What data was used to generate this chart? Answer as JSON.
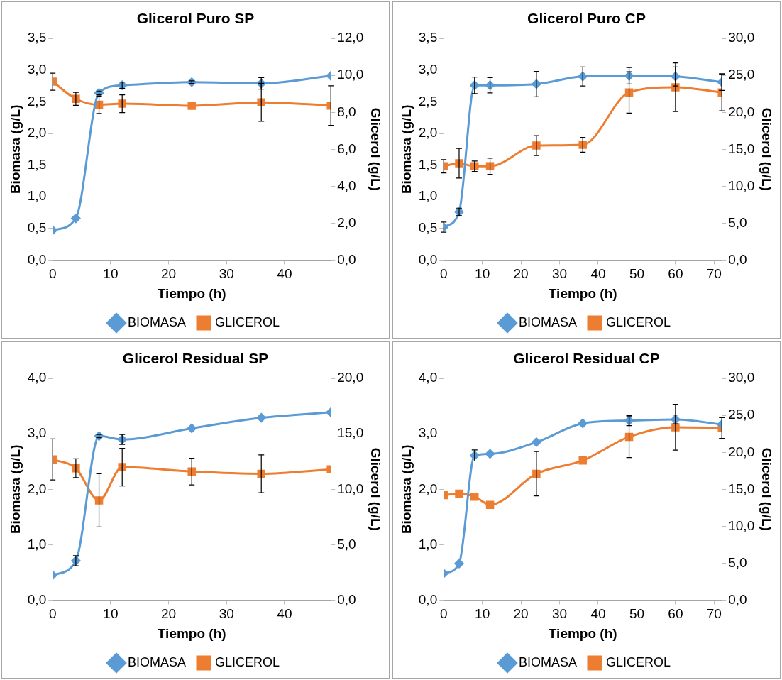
{
  "chart_data": [
    {
      "type": "line",
      "title": "Glicerol Puro SP",
      "xlabel": "Tiempo (h)",
      "ylabel": "Biomasa (g/L)",
      "y2label": "Glicerol (g/L)",
      "x": [
        0,
        4,
        8,
        12,
        24,
        36,
        48
      ],
      "xlim": [
        0,
        48
      ],
      "xticks": [
        0,
        10,
        20,
        30,
        40
      ],
      "ylim": [
        0,
        3.5
      ],
      "yticks": [
        {
          "value": 0,
          "label": "0,0"
        },
        {
          "value": 0.5,
          "label": "0,5"
        },
        {
          "value": 1,
          "label": "1,0"
        },
        {
          "value": 1.5,
          "label": "1,5"
        },
        {
          "value": 2,
          "label": "2,0"
        },
        {
          "value": 2.5,
          "label": "2,5"
        },
        {
          "value": 3,
          "label": "3,0"
        },
        {
          "value": 3.5,
          "label": "3,5"
        }
      ],
      "y2lim": [
        0,
        12
      ],
      "y2ticks": [
        {
          "value": 0,
          "label": "0,0"
        },
        {
          "value": 2,
          "label": "2,0"
        },
        {
          "value": 4,
          "label": "4,0"
        },
        {
          "value": 6,
          "label": "6,0"
        },
        {
          "value": 8,
          "label": "8,0"
        },
        {
          "value": 10,
          "label": "10,0"
        },
        {
          "value": 12,
          "label": "12,0"
        }
      ],
      "grid": false,
      "legend": "bottom",
      "series": [
        {
          "name": "BIOMASA",
          "color": "#5b9bd5",
          "marker": "diamond",
          "values": [
            0.47,
            0.66,
            2.64,
            2.76,
            2.81,
            2.79,
            2.91
          ],
          "errors": [
            null,
            null,
            0.03,
            0.05,
            0.02,
            0.09,
            null
          ]
        },
        {
          "name": "GLICEROL",
          "color": "#ed7d31",
          "marker": "square",
          "axis": "y2",
          "values": [
            9.66,
            8.73,
            8.41,
            8.47,
            8.36,
            8.54,
            8.37
          ],
          "errors": [
            0.46,
            0.35,
            0.47,
            0.48,
            null,
            1.03,
            1.07
          ]
        }
      ]
    },
    {
      "type": "line",
      "title": "Glicerol Puro CP",
      "xlabel": "Tiempo (h)",
      "ylabel": "Biomasa (g/L)",
      "y2label": "Glicerol (g/L)",
      "x": [
        0,
        4,
        8,
        12,
        24,
        36,
        48,
        60,
        72
      ],
      "xlim": [
        0,
        72
      ],
      "xticks": [
        0,
        10,
        20,
        30,
        40,
        50,
        60,
        70
      ],
      "ylim": [
        0,
        3.5
      ],
      "yticks": [
        {
          "value": 0,
          "label": "0,0"
        },
        {
          "value": 0.5,
          "label": "0,5"
        },
        {
          "value": 1,
          "label": "1,0"
        },
        {
          "value": 1.5,
          "label": "1,5"
        },
        {
          "value": 2,
          "label": "2,0"
        },
        {
          "value": 2.5,
          "label": "2,5"
        },
        {
          "value": 3,
          "label": "3,0"
        },
        {
          "value": 3.5,
          "label": "3,5"
        }
      ],
      "y2lim": [
        0,
        30
      ],
      "y2ticks": [
        {
          "value": 0,
          "label": "0,0"
        },
        {
          "value": 5,
          "label": "5,0"
        },
        {
          "value": 10,
          "label": "10,0"
        },
        {
          "value": 15,
          "label": "15,0"
        },
        {
          "value": 20,
          "label": "20,0"
        },
        {
          "value": 25,
          "label": "25,0"
        },
        {
          "value": 30,
          "label": "30,0"
        }
      ],
      "grid": false,
      "legend": "bottom",
      "series": [
        {
          "name": "BIOMASA",
          "color": "#5b9bd5",
          "marker": "diamond",
          "values": [
            0.52,
            0.76,
            2.76,
            2.76,
            2.78,
            2.9,
            2.91,
            2.9,
            2.81
          ],
          "errors": [
            0.08,
            0.06,
            0.13,
            0.12,
            0.2,
            0.15,
            0.13,
            0.15,
            0.13
          ]
        },
        {
          "name": "GLICEROL",
          "color": "#ed7d31",
          "marker": "square",
          "axis": "y2",
          "values": [
            12.7,
            13.1,
            12.7,
            12.7,
            15.5,
            15.6,
            22.7,
            23.4,
            22.7
          ],
          "errors": [
            0.9,
            2.0,
            0.7,
            1.1,
            1.35,
            1.0,
            2.8,
            3.3,
            2.5
          ]
        }
      ]
    },
    {
      "type": "line",
      "title": "Glicerol Residual SP",
      "xlabel": "Tiempo (h)",
      "ylabel": "Biomasa (g/L)",
      "y2label": "Glicerol (g/L)",
      "x": [
        0,
        4,
        8,
        12,
        24,
        36,
        48
      ],
      "xlim": [
        0,
        48
      ],
      "xticks": [
        0,
        10,
        20,
        30,
        40
      ],
      "ylim": [
        0,
        4
      ],
      "yticks": [
        {
          "value": 0,
          "label": "0,0"
        },
        {
          "value": 1,
          "label": "1,0"
        },
        {
          "value": 2,
          "label": "2,0"
        },
        {
          "value": 3,
          "label": "3,0"
        },
        {
          "value": 4,
          "label": "4,0"
        }
      ],
      "y2lim": [
        0,
        20
      ],
      "y2ticks": [
        {
          "value": 0,
          "label": "0,0"
        },
        {
          "value": 5,
          "label": "5,0"
        },
        {
          "value": 10,
          "label": "10,0"
        },
        {
          "value": 15,
          "label": "15,0"
        },
        {
          "value": 20,
          "label": "20,0"
        }
      ],
      "grid": false,
      "legend": "bottom",
      "series": [
        {
          "name": "BIOMASA",
          "color": "#5b9bd5",
          "marker": "diamond",
          "values": [
            0.45,
            0.71,
            2.96,
            2.9,
            3.1,
            3.29,
            3.39
          ],
          "errors": [
            null,
            0.09,
            0.03,
            0.09,
            null,
            null,
            null
          ]
        },
        {
          "name": "GLICEROL",
          "color": "#ed7d31",
          "marker": "square",
          "axis": "y2",
          "values": [
            12.7,
            11.9,
            9.0,
            12.0,
            11.6,
            11.4,
            11.8
          ],
          "errors": [
            1.85,
            0.85,
            2.4,
            1.7,
            1.2,
            1.7,
            null
          ]
        }
      ]
    },
    {
      "type": "line",
      "title": "Glicerol Residual CP",
      "xlabel": "Tiempo (h)",
      "ylabel": "Biomasa (g/L)",
      "y2label": "Glicerol (g/L)",
      "x": [
        0,
        4,
        8,
        12,
        24,
        36,
        48,
        60,
        72
      ],
      "xlim": [
        0,
        72
      ],
      "xticks": [
        0,
        10,
        20,
        30,
        40,
        50,
        60,
        70
      ],
      "ylim": [
        0,
        4
      ],
      "yticks": [
        {
          "value": 0,
          "label": "0,0"
        },
        {
          "value": 1,
          "label": "1,0"
        },
        {
          "value": 2,
          "label": "2,0"
        },
        {
          "value": 3,
          "label": "3,0"
        },
        {
          "value": 4,
          "label": "4,0"
        }
      ],
      "y2lim": [
        0,
        30
      ],
      "y2ticks": [
        {
          "value": 0,
          "label": "0,0"
        },
        {
          "value": 5,
          "label": "5,0"
        },
        {
          "value": 10,
          "label": "10,0"
        },
        {
          "value": 15,
          "label": "15,0"
        },
        {
          "value": 20,
          "label": "20,0"
        },
        {
          "value": 25,
          "label": "25,0"
        },
        {
          "value": 30,
          "label": "30,0"
        }
      ],
      "grid": false,
      "legend": "bottom",
      "series": [
        {
          "name": "BIOMASA",
          "color": "#5b9bd5",
          "marker": "diamond",
          "values": [
            0.48,
            0.66,
            2.61,
            2.64,
            2.85,
            3.19,
            3.24,
            3.26,
            3.17
          ],
          "errors": [
            null,
            null,
            0.1,
            null,
            null,
            null,
            0.09,
            0.08,
            null
          ]
        },
        {
          "name": "GLICEROL",
          "color": "#ed7d31",
          "marker": "square",
          "axis": "y2",
          "values": [
            14.2,
            14.4,
            14.0,
            12.9,
            17.1,
            18.9,
            22.1,
            23.4,
            23.3
          ],
          "errors": [
            null,
            null,
            null,
            null,
            3.0,
            null,
            2.8,
            3.1,
            1.4
          ]
        }
      ]
    }
  ]
}
